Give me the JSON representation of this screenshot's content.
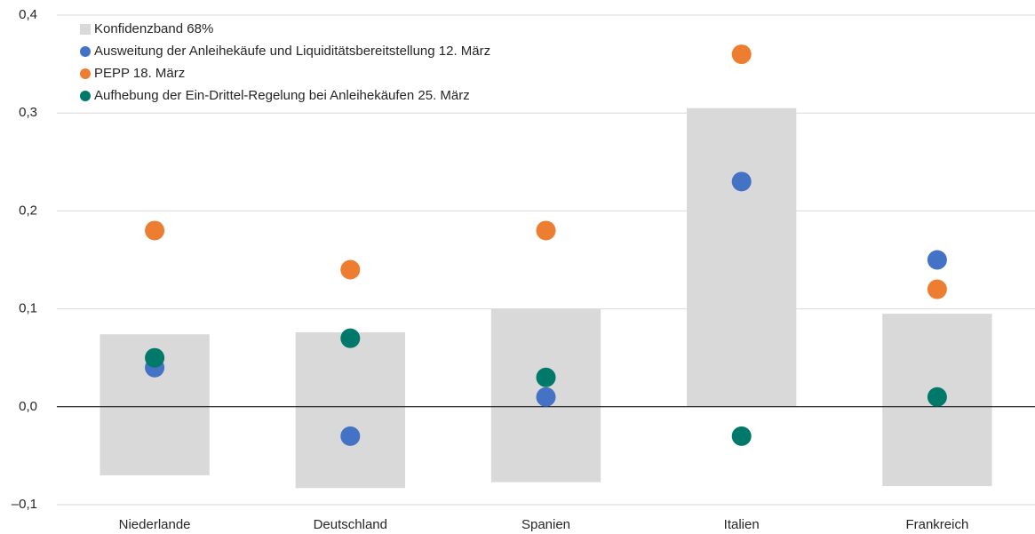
{
  "chart_data": {
    "type": "scatter",
    "categories": [
      "Niederlande",
      "Deutschland",
      "Spanien",
      "Italien",
      "Frankreich"
    ],
    "band": {
      "name": "Konfidenzband 68%",
      "color": "#d9d9d9",
      "low": [
        -0.07,
        -0.083,
        -0.077,
        0,
        -0.081
      ],
      "high": [
        0.074,
        0.076,
        0.1,
        0.305,
        0.095
      ]
    },
    "series": [
      {
        "name": "Ausweitung der Anleihekäufe und Liquiditätsbereitstellung 12. März",
        "color": "#4472c4",
        "values": [
          0.04,
          -0.03,
          0.01,
          0.23,
          0.15
        ]
      },
      {
        "name": "PEPP 18. März",
        "color": "#ed7d31",
        "values": [
          0.18,
          0.14,
          0.18,
          0.36,
          0.12
        ]
      },
      {
        "name": "Aufhebung der Ein-Drittel-Regelung bei Anleihekäufen 25. März",
        "color": "#00796b",
        "values": [
          0.05,
          0.07,
          0.03,
          -0.03,
          0.01
        ]
      }
    ],
    "ylim": [
      -0.1,
      0.4
    ],
    "yticks": [
      {
        "value": -0.1,
        "label": "–0,1"
      },
      {
        "value": 0,
        "label": "0,0"
      },
      {
        "value": 0.1,
        "label": "0,1"
      },
      {
        "value": 0.2,
        "label": "0,2"
      },
      {
        "value": 0.3,
        "label": "0,3"
      },
      {
        "value": 0.4,
        "label": "0,4"
      }
    ],
    "grid": true
  }
}
